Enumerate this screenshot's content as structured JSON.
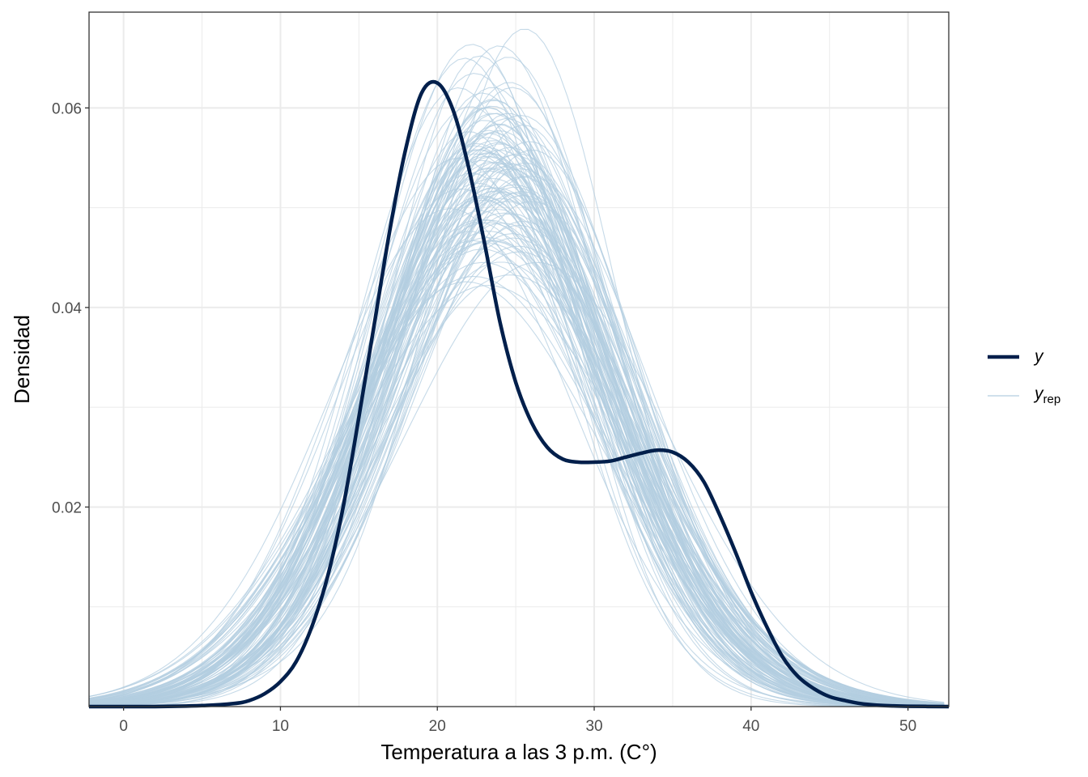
{
  "chart_data": {
    "type": "line",
    "title": "",
    "xlabel": "Temperatura a las 3 p.m. (C°)",
    "ylabel": "Densidad",
    "xlim": [
      -2.2,
      52.6
    ],
    "ylim": [
      0.0,
      0.0696
    ],
    "x_ticks": [
      0,
      10,
      20,
      30,
      40,
      50
    ],
    "x_tick_labels": [
      "0",
      "10",
      "20",
      "30",
      "40",
      "50"
    ],
    "y_ticks": [
      0.02,
      0.04,
      0.06
    ],
    "y_tick_labels": [
      "0.02",
      "0.04",
      "0.06"
    ],
    "y_minor_ticks": [
      0.01,
      0.03,
      0.05
    ],
    "x_minor_ticks": [
      5,
      15,
      25,
      35,
      45
    ],
    "grid": true,
    "legend_position": "right",
    "colors": {
      "y": "#011f4b",
      "yrep": "#b3cde0"
    },
    "series": [
      {
        "name": "y",
        "role": "observed",
        "x": [
          -2.2,
          2,
          5,
          7,
          8,
          9,
          10,
          11,
          12,
          13,
          14,
          15,
          16,
          17,
          18,
          19,
          20,
          21,
          22,
          23,
          24,
          25,
          26,
          27,
          28,
          29,
          30,
          31,
          32,
          33,
          34,
          35,
          36,
          37,
          38,
          39,
          40,
          41,
          42,
          43,
          44,
          45,
          46,
          47,
          48,
          49,
          50,
          52.6
        ],
        "y": [
          0.0,
          0.0,
          0.0001,
          0.0003,
          0.0006,
          0.0013,
          0.0025,
          0.0045,
          0.008,
          0.013,
          0.02,
          0.029,
          0.0385,
          0.048,
          0.056,
          0.0615,
          0.0625,
          0.0598,
          0.054,
          0.0465,
          0.0385,
          0.0325,
          0.0285,
          0.026,
          0.0248,
          0.0245,
          0.0245,
          0.0246,
          0.025,
          0.0254,
          0.0257,
          0.0255,
          0.0245,
          0.0225,
          0.0192,
          0.0155,
          0.0115,
          0.008,
          0.005,
          0.003,
          0.0018,
          0.001,
          0.0006,
          0.0003,
          0.00015,
          7e-05,
          3e-05,
          0.0
        ]
      },
      {
        "name": "yrep",
        "role": "replicated",
        "draws": 120,
        "peak_x_range": [
          21,
          25.5
        ],
        "peak_y_range": [
          0.04,
          0.0695
        ]
      }
    ]
  },
  "legend": {
    "items": [
      {
        "name": "y",
        "main": "y",
        "sub": ""
      },
      {
        "name": "yrep",
        "main": "y",
        "sub": "rep"
      }
    ]
  }
}
